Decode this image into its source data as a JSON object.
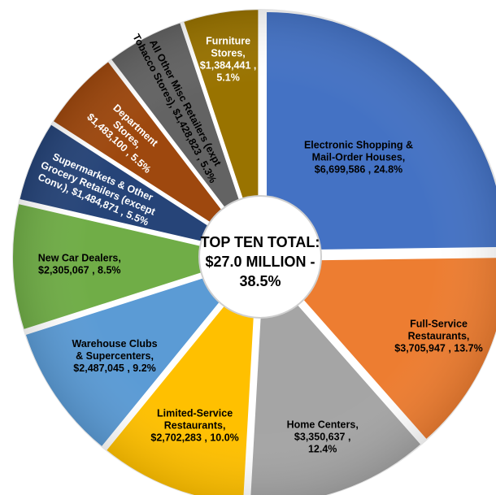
{
  "chart_data": {
    "type": "pie",
    "center_text": [
      "TOP TEN TOTAL:",
      "$27.0 MILLION -",
      "38.5%"
    ],
    "slices": [
      {
        "name": "Electronic Shopping & Mail-Order Houses",
        "value": 6699586,
        "percent": 24.8,
        "color": "#4472C4",
        "text_color": "#000000",
        "label_lines": [
          "Electronic Shopping &",
          "Mail-Order Houses,",
          "$6,699,586 , 24.8%"
        ]
      },
      {
        "name": "Full-Service Restaurants",
        "value": 3705947,
        "percent": 13.7,
        "color": "#ED7D31",
        "text_color": "#000000",
        "label_lines": [
          "Full-Service",
          "Restaurants,",
          "$3,705,947 , 13.7%"
        ]
      },
      {
        "name": "Home Centers",
        "value": 3350637,
        "percent": 12.4,
        "color": "#A5A5A5",
        "text_color": "#000000",
        "label_lines": [
          "Home Centers,",
          "$3,350,637 ,",
          "12.4%"
        ]
      },
      {
        "name": "Limited-Service Restaurants",
        "value": 2702283,
        "percent": 10.0,
        "color": "#FFC000",
        "text_color": "#000000",
        "label_lines": [
          "Limited-Service",
          "Restaurants,",
          "$2,702,283 , 10.0%"
        ]
      },
      {
        "name": "Warehouse Clubs & Supercenters",
        "value": 2487045,
        "percent": 9.2,
        "color": "#5B9BD5",
        "text_color": "#000000",
        "label_lines": [
          "Warehouse Clubs",
          "& Supercenters,",
          "$2,487,045 , 9.2%"
        ]
      },
      {
        "name": "New Car Dealers",
        "value": 2305067,
        "percent": 8.5,
        "color": "#70AD47",
        "text_color": "#000000",
        "label_lines": [
          "New Car Dealers,",
          "$2,305,067 , 8.5%"
        ]
      },
      {
        "name": "Supermarkets & Other Grocery Retailers (except Conv.)",
        "value": 1484871,
        "percent": 5.5,
        "color": "#264478",
        "text_color": "#ffffff",
        "label_lines": [
          "Supermarkets & Other",
          "Grocery Retailers (except",
          "Conv.), $1,484,871 , 5.5%"
        ]
      },
      {
        "name": "Department Stores",
        "value": 1483100,
        "percent": 5.5,
        "color": "#9E480E",
        "text_color": "#ffffff",
        "label_lines": [
          "Department",
          "Stores,",
          "$1,483,100 , 5.5%"
        ]
      },
      {
        "name": "All Other Misc Retailers (expt Tobacco Stores)",
        "value": 1428823,
        "percent": 5.3,
        "color": "#636363",
        "text_color": "#000000",
        "label_lines": [
          "All Other Misc Retailers (expt",
          "Tobacco Stores), $1,428,823 , 5.3%"
        ]
      },
      {
        "name": "Furniture Stores",
        "value": 1384441,
        "percent": 5.1,
        "color": "#997300",
        "text_color": "#ffffff",
        "label_lines": [
          "Furniture",
          "Stores,",
          "$1,384,441 ,",
          "5.1%"
        ]
      }
    ]
  }
}
